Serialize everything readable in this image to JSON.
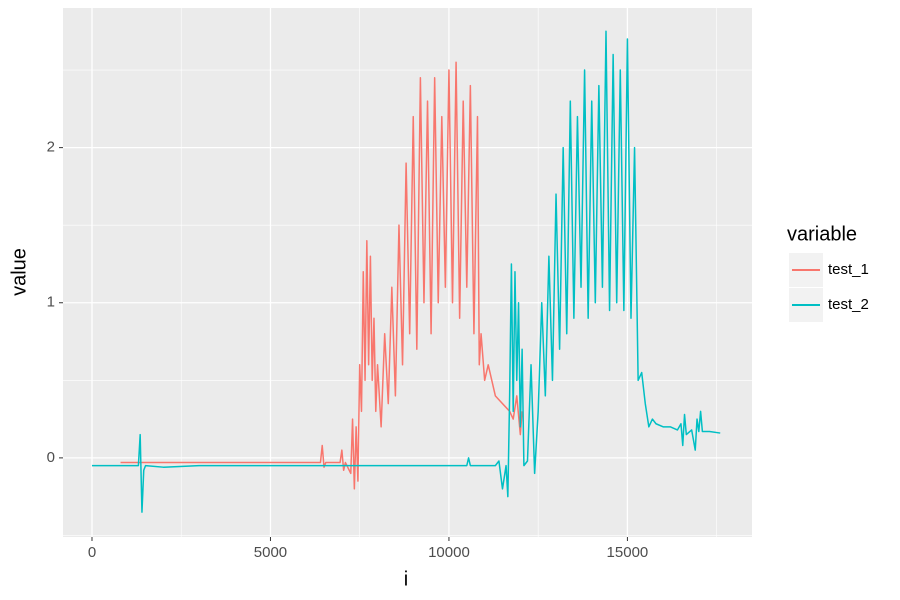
{
  "chart_data": {
    "type": "line",
    "x_label": "i",
    "y_label": "value",
    "legend_title": "variable",
    "legend_position": "right",
    "xlim": [
      -812,
      18490
    ],
    "ylim": [
      -0.51,
      2.9
    ],
    "xticks": [
      0,
      5000,
      10000,
      15000
    ],
    "yticks": [
      0,
      1,
      2
    ],
    "x_minor_gridlines": [
      2500,
      7500,
      12500,
      17500
    ],
    "y_minor_gridlines": [
      -0.5,
      0.5,
      1.5,
      2.5
    ],
    "grid": true,
    "series": [
      {
        "name": "test_1",
        "color": "#f8766d",
        "x": [
          800,
          6400,
          6450,
          6500,
          6550,
          6950,
          7000,
          7050,
          7100,
          7250,
          7300,
          7350,
          7400,
          7450,
          7500,
          7550,
          7600,
          7650,
          7700,
          7750,
          7800,
          7850,
          7900,
          7950,
          8000,
          8100,
          8200,
          8300,
          8400,
          8500,
          8600,
          8700,
          8800,
          8900,
          9000,
          9100,
          9200,
          9300,
          9400,
          9500,
          9600,
          9700,
          9800,
          9900,
          10000,
          10100,
          10200,
          10300,
          10400,
          10500,
          10600,
          10700,
          10800,
          10850,
          10900,
          11000,
          11100,
          11300,
          11500,
          11700,
          11800,
          11900,
          12000,
          12050
        ],
        "values": [
          -0.03,
          -0.03,
          0.08,
          -0.06,
          -0.03,
          -0.03,
          0.05,
          -0.08,
          -0.03,
          -0.1,
          0.25,
          -0.2,
          0.2,
          -0.15,
          0.6,
          0.3,
          1.2,
          0.5,
          1.4,
          0.6,
          1.3,
          0.5,
          0.9,
          0.3,
          0.6,
          0.2,
          0.8,
          0.35,
          1.1,
          0.4,
          1.5,
          0.6,
          1.9,
          0.8,
          2.2,
          0.7,
          2.45,
          1.0,
          2.3,
          0.8,
          2.45,
          1.0,
          2.2,
          1.1,
          2.5,
          1.0,
          2.55,
          0.9,
          2.3,
          1.1,
          2.4,
          0.8,
          2.2,
          0.6,
          0.8,
          0.5,
          0.6,
          0.4,
          0.35,
          0.3,
          0.25,
          0.4,
          0.15,
          0.3
        ]
      },
      {
        "name": "test_2",
        "color": "#00bfc4",
        "x": [
          0,
          1300,
          1350,
          1400,
          1450,
          1500,
          2000,
          3000,
          4000,
          5000,
          6000,
          7000,
          8000,
          9000,
          10000,
          10500,
          10550,
          10600,
          11300,
          11400,
          11500,
          11600,
          11650,
          11700,
          11750,
          11800,
          11850,
          11900,
          11950,
          12000,
          12050,
          12100,
          12200,
          12300,
          12400,
          12500,
          12600,
          12700,
          12800,
          12900,
          13000,
          13100,
          13200,
          13300,
          13400,
          13500,
          13600,
          13700,
          13800,
          13900,
          14000,
          14100,
          14200,
          14300,
          14400,
          14500,
          14600,
          14700,
          14800,
          14900,
          15000,
          15100,
          15200,
          15300,
          15400,
          15500,
          15600,
          15700,
          15800,
          16000,
          16200,
          16400,
          16500,
          16550,
          16600,
          16650,
          16800,
          16900,
          16950,
          17000,
          17050,
          17100,
          17300,
          17600
        ],
        "values": [
          -0.05,
          -0.05,
          0.15,
          -0.35,
          -0.08,
          -0.05,
          -0.06,
          -0.05,
          -0.05,
          -0.05,
          -0.05,
          -0.05,
          -0.05,
          -0.05,
          -0.05,
          -0.05,
          0.0,
          -0.05,
          -0.05,
          -0.02,
          -0.2,
          -0.05,
          -0.25,
          0.4,
          1.25,
          0.3,
          1.2,
          0.5,
          1.0,
          0.2,
          0.7,
          -0.05,
          -0.02,
          0.6,
          -0.1,
          0.3,
          1.0,
          0.4,
          1.3,
          0.5,
          1.7,
          0.7,
          2.0,
          0.8,
          2.3,
          0.9,
          2.2,
          1.1,
          2.5,
          0.9,
          2.3,
          1.0,
          2.4,
          1.1,
          2.75,
          0.95,
          2.6,
          1.0,
          2.5,
          0.95,
          2.7,
          0.9,
          2.0,
          0.5,
          0.55,
          0.35,
          0.2,
          0.25,
          0.22,
          0.2,
          0.2,
          0.18,
          0.22,
          0.08,
          0.28,
          0.15,
          0.18,
          0.05,
          0.25,
          0.17,
          0.3,
          0.17,
          0.17,
          0.16
        ]
      }
    ]
  }
}
